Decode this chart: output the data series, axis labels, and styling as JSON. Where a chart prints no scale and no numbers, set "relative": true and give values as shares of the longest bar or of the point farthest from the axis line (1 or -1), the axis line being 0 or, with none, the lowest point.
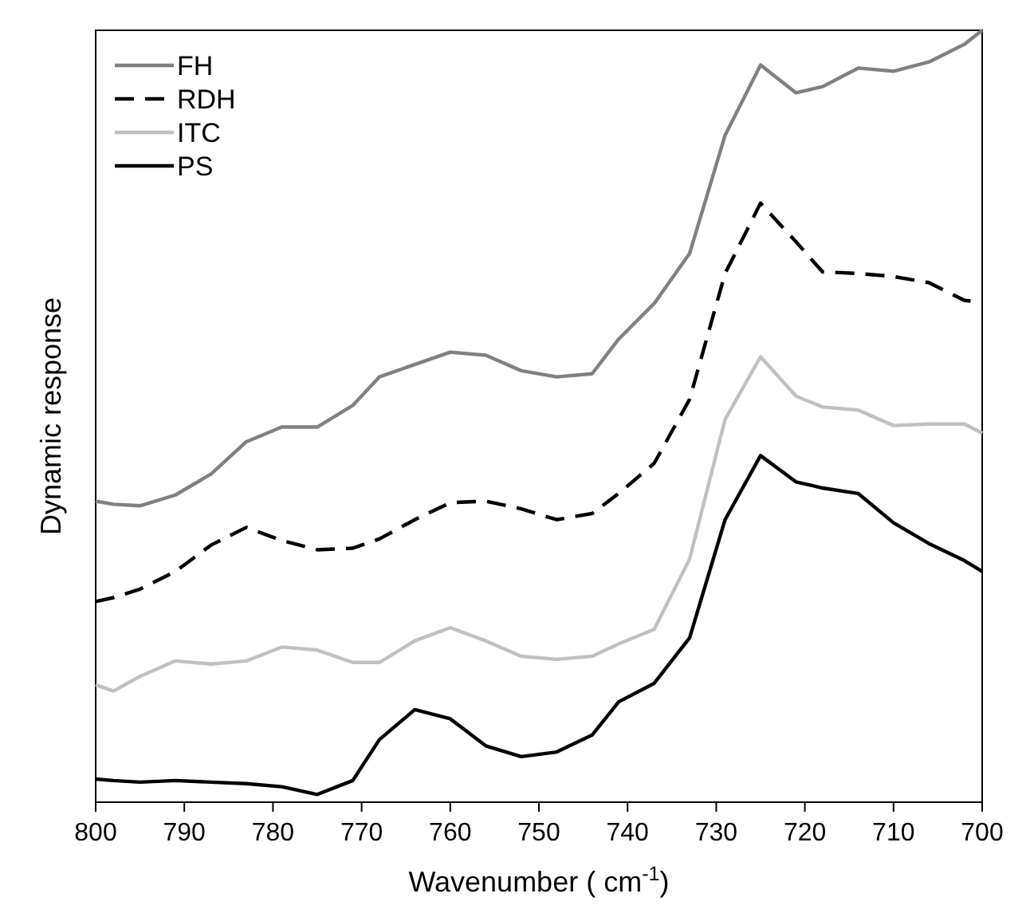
{
  "chart_data": {
    "type": "line",
    "relative": true,
    "xlabel": "Wavenumber ( cm$^{-1}$)",
    "ylabel": "Dynamic response",
    "xlim": [
      800,
      700
    ],
    "xticks": [
      800,
      790,
      780,
      770,
      760,
      750,
      740,
      730,
      720,
      710,
      700
    ],
    "legend": "top left",
    "x": [
      800,
      798,
      795,
      791,
      787,
      783,
      779,
      775,
      771,
      768,
      764,
      760,
      756,
      752,
      748,
      744,
      741,
      737,
      733,
      729,
      725,
      721,
      718,
      714,
      710,
      706,
      702,
      700
    ],
    "series": [
      {
        "name": "FH",
        "color": "#808080",
        "line_style": "solid",
        "values": [
          0.39,
          0.386,
          0.384,
          0.398,
          0.425,
          0.467,
          0.486,
          0.486,
          0.514,
          0.551,
          0.567,
          0.583,
          0.579,
          0.559,
          0.551,
          0.555,
          0.6,
          0.646,
          0.711,
          0.864,
          0.955,
          0.919,
          0.927,
          0.951,
          0.947,
          0.959,
          0.982,
          1
        ]
      },
      {
        "name": "RDH",
        "color": "#000000",
        "line_style": "dashed",
        "values": [
          0.26,
          0.265,
          0.276,
          0.299,
          0.333,
          0.356,
          0.339,
          0.327,
          0.329,
          0.341,
          0.366,
          0.388,
          0.39,
          0.38,
          0.366,
          0.374,
          0.4,
          0.439,
          0.522,
          0.685,
          0.776,
          0.726,
          0.687,
          0.685,
          0.681,
          0.673,
          0.65,
          0.648
        ]
      },
      {
        "name": "ITC",
        "color": "#c0c0c0",
        "line_style": "solid",
        "values": [
          0.152,
          0.144,
          0.163,
          0.183,
          0.179,
          0.183,
          0.201,
          0.197,
          0.181,
          0.181,
          0.209,
          0.226,
          0.209,
          0.189,
          0.185,
          0.189,
          0.205,
          0.224,
          0.315,
          0.496,
          0.577,
          0.526,
          0.512,
          0.508,
          0.488,
          0.49,
          0.49,
          0.478
        ]
      },
      {
        "name": "PS",
        "color": "#000000",
        "line_style": "solid",
        "values": [
          0.03,
          0.028,
          0.026,
          0.028,
          0.026,
          0.024,
          0.02,
          0.01,
          0.028,
          0.081,
          0.12,
          0.108,
          0.073,
          0.059,
          0.065,
          0.087,
          0.13,
          0.154,
          0.213,
          0.366,
          0.449,
          0.415,
          0.407,
          0.4,
          0.362,
          0.335,
          0.313,
          0.299
        ]
      }
    ]
  }
}
